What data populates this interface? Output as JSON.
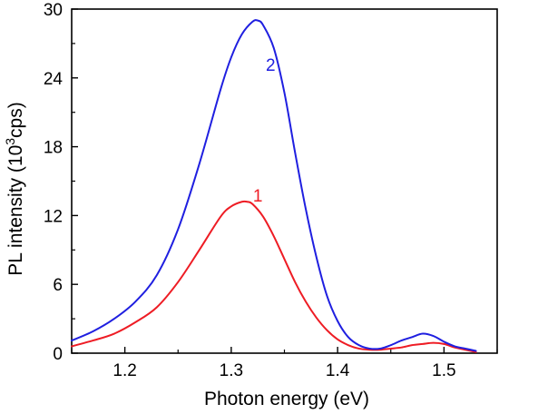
{
  "chart_data": {
    "type": "line",
    "title": "",
    "xlabel": "Photon energy (eV)",
    "ylabel": {
      "before": "PL intensity (10",
      "sup": "3",
      "after": "cps)"
    },
    "xlim": [
      1.15,
      1.55
    ],
    "ylim": [
      0,
      30
    ],
    "xticks": [
      1.2,
      1.3,
      1.4,
      1.5
    ],
    "xtick_labels": [
      "1.2",
      "1.3",
      "1.4",
      "1.5"
    ],
    "yticks": [
      0,
      6,
      12,
      18,
      24,
      30
    ],
    "ytick_labels": [
      "0",
      "6",
      "12",
      "18",
      "24",
      "30"
    ],
    "grid": false,
    "legend": "none",
    "series": [
      {
        "label": "1",
        "color": "#ee1c24",
        "x": [
          1.15,
          1.17,
          1.19,
          1.21,
          1.23,
          1.25,
          1.27,
          1.29,
          1.3,
          1.31,
          1.315,
          1.32,
          1.33,
          1.34,
          1.35,
          1.36,
          1.37,
          1.38,
          1.39,
          1.4,
          1.41,
          1.42,
          1.43,
          1.44,
          1.45,
          1.46,
          1.47,
          1.48,
          1.49,
          1.5,
          1.51,
          1.52,
          1.53
        ],
        "y": [
          0.6,
          1.1,
          1.7,
          2.7,
          4.0,
          6.2,
          9.0,
          11.9,
          12.8,
          13.2,
          13.2,
          13.0,
          11.9,
          10.2,
          8.2,
          6.2,
          4.5,
          3.1,
          2.0,
          1.2,
          0.7,
          0.4,
          0.3,
          0.3,
          0.4,
          0.5,
          0.7,
          0.8,
          0.9,
          0.8,
          0.5,
          0.3,
          0.1
        ]
      },
      {
        "label": "2",
        "color": "#1f1fe0",
        "x": [
          1.15,
          1.17,
          1.19,
          1.21,
          1.23,
          1.25,
          1.27,
          1.29,
          1.3,
          1.31,
          1.32,
          1.325,
          1.33,
          1.34,
          1.35,
          1.36,
          1.37,
          1.38,
          1.39,
          1.4,
          1.41,
          1.42,
          1.43,
          1.44,
          1.45,
          1.46,
          1.47,
          1.48,
          1.49,
          1.5,
          1.51,
          1.52,
          1.53
        ],
        "y": [
          1.1,
          1.9,
          3.0,
          4.5,
          6.8,
          10.8,
          16.5,
          23.0,
          25.8,
          27.8,
          28.9,
          29.0,
          28.6,
          26.6,
          22.7,
          17.5,
          12.6,
          8.4,
          5.0,
          2.8,
          1.4,
          0.7,
          0.4,
          0.4,
          0.7,
          1.1,
          1.4,
          1.7,
          1.5,
          1.0,
          0.6,
          0.4,
          0.2
        ]
      }
    ],
    "annotations": [
      {
        "text": "1",
        "x": 1.325,
        "y": 13.2,
        "color": "#ee1c24"
      },
      {
        "text": "2",
        "x": 1.337,
        "y": 24.6,
        "color": "#1f1fe0"
      }
    ]
  }
}
